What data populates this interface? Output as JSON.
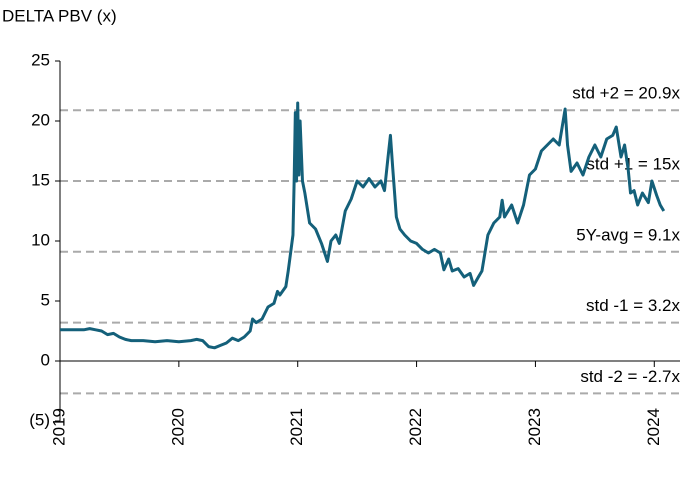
{
  "chart_data": {
    "type": "line",
    "title": "DELTA PBV (x)",
    "color": "#14607a",
    "x": [
      2019.0,
      2019.1,
      2019.2,
      2019.25,
      2019.3,
      2019.35,
      2019.4,
      2019.45,
      2019.5,
      2019.55,
      2019.6,
      2019.7,
      2019.8,
      2019.9,
      2020.0,
      2020.1,
      2020.15,
      2020.2,
      2020.25,
      2020.3,
      2020.35,
      2020.4,
      2020.45,
      2020.5,
      2020.55,
      2020.6,
      2020.62,
      2020.65,
      2020.7,
      2020.75,
      2020.8,
      2020.83,
      2020.85,
      2020.9,
      2020.92,
      2020.94,
      2020.96,
      2020.97,
      2020.98,
      2020.99,
      2021.0,
      2021.01,
      2021.02,
      2021.04,
      2021.06,
      2021.1,
      2021.15,
      2021.2,
      2021.25,
      2021.28,
      2021.32,
      2021.35,
      2021.4,
      2021.45,
      2021.5,
      2021.55,
      2021.6,
      2021.65,
      2021.7,
      2021.73,
      2021.76,
      2021.78,
      2021.8,
      2021.83,
      2021.86,
      2021.9,
      2021.95,
      2022.0,
      2022.05,
      2022.1,
      2022.15,
      2022.2,
      2022.23,
      2022.27,
      2022.3,
      2022.35,
      2022.4,
      2022.45,
      2022.48,
      2022.52,
      2022.55,
      2022.6,
      2022.65,
      2022.7,
      2022.72,
      2022.74,
      2022.8,
      2022.85,
      2022.9,
      2022.95,
      2023.0,
      2023.05,
      2023.1,
      2023.15,
      2023.2,
      2023.25,
      2023.27,
      2023.3,
      2023.35,
      2023.4,
      2023.45,
      2023.5,
      2023.55,
      2023.6,
      2023.65,
      2023.68,
      2023.72,
      2023.75,
      2023.78,
      2023.8,
      2023.83,
      2023.86,
      2023.9,
      2023.95,
      2023.98,
      2024.02,
      2024.05,
      2024.08
    ],
    "values": [
      2.6,
      2.6,
      2.6,
      2.7,
      2.6,
      2.5,
      2.2,
      2.3,
      2.0,
      1.8,
      1.7,
      1.7,
      1.6,
      1.7,
      1.6,
      1.7,
      1.8,
      1.7,
      1.2,
      1.1,
      1.3,
      1.5,
      1.9,
      1.7,
      2.0,
      2.5,
      3.5,
      3.2,
      3.5,
      4.5,
      4.8,
      5.8,
      5.5,
      6.2,
      7.5,
      9.0,
      10.5,
      15.0,
      20.7,
      15.0,
      21.5,
      15.5,
      20.0,
      15.0,
      14.0,
      11.5,
      11.0,
      9.8,
      8.3,
      10.0,
      10.5,
      9.8,
      12.5,
      13.5,
      15.0,
      14.5,
      15.2,
      14.5,
      15.0,
      14.2,
      17.0,
      18.8,
      16.0,
      12.0,
      11.0,
      10.5,
      10.0,
      9.8,
      9.3,
      9.0,
      9.3,
      9.0,
      7.6,
      8.5,
      7.5,
      7.7,
      7.0,
      7.3,
      6.3,
      7.0,
      7.5,
      10.5,
      11.5,
      12.0,
      13.4,
      12.0,
      13.0,
      11.5,
      13.0,
      15.5,
      16.0,
      17.5,
      18.0,
      18.5,
      18.0,
      21.0,
      18.0,
      15.8,
      16.5,
      15.5,
      17.0,
      18.0,
      17.0,
      18.5,
      18.8,
      19.5,
      17.0,
      18.0,
      16.0,
      14.0,
      14.2,
      13.0,
      14.0,
      13.2,
      15.0,
      13.8,
      13.0,
      12.5
    ],
    "xlim": [
      2019,
      2024.25
    ],
    "xticks": [
      2019,
      2020,
      2021,
      2022,
      2023,
      2024
    ],
    "ylim": [
      -5,
      25
    ],
    "yticks": [
      25,
      20,
      15,
      10,
      5,
      0,
      {
        "value": -5,
        "label": "(5)"
      }
    ],
    "reference_lines": [
      {
        "label": "std +2 = 20.9x",
        "value": 20.9
      },
      {
        "label": "std +1 = 15x",
        "value": 15
      },
      {
        "label": "5Y-avg = 9.1x",
        "value": 9.1
      },
      {
        "label": "std -1 = 3.2x",
        "value": 3.2
      },
      {
        "label": "std -2 = -2.7x",
        "value": -2.7
      }
    ]
  }
}
